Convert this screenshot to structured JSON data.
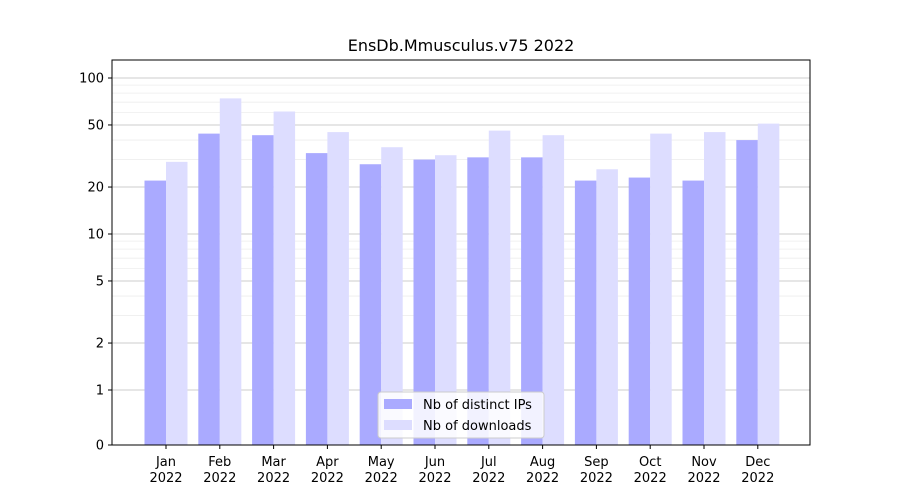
{
  "chart_data": {
    "type": "bar",
    "title": "EnsDb.Mmusculus.v75 2022",
    "xlabel": "",
    "ylabel": "",
    "yscale": "symlog",
    "ylim": [
      0,
      120
    ],
    "yticks": [
      0,
      1,
      2,
      5,
      10,
      20,
      50,
      100
    ],
    "grid": true,
    "legend_position": "bottom-center",
    "categories": [
      {
        "month": "Jan",
        "year": "2022"
      },
      {
        "month": "Feb",
        "year": "2022"
      },
      {
        "month": "Mar",
        "year": "2022"
      },
      {
        "month": "Apr",
        "year": "2022"
      },
      {
        "month": "May",
        "year": "2022"
      },
      {
        "month": "Jun",
        "year": "2022"
      },
      {
        "month": "Jul",
        "year": "2022"
      },
      {
        "month": "Aug",
        "year": "2022"
      },
      {
        "month": "Sep",
        "year": "2022"
      },
      {
        "month": "Oct",
        "year": "2022"
      },
      {
        "month": "Nov",
        "year": "2022"
      },
      {
        "month": "Dec",
        "year": "2022"
      }
    ],
    "series": [
      {
        "name": "Nb of distinct IPs",
        "color": "#aaaaff",
        "values": [
          22,
          44,
          43,
          33,
          28,
          30,
          31,
          31,
          22,
          23,
          22,
          40
        ]
      },
      {
        "name": "Nb of downloads",
        "color": "#ddddff",
        "values": [
          29,
          74,
          61,
          45,
          36,
          32,
          46,
          43,
          26,
          44,
          45,
          51
        ]
      }
    ]
  }
}
